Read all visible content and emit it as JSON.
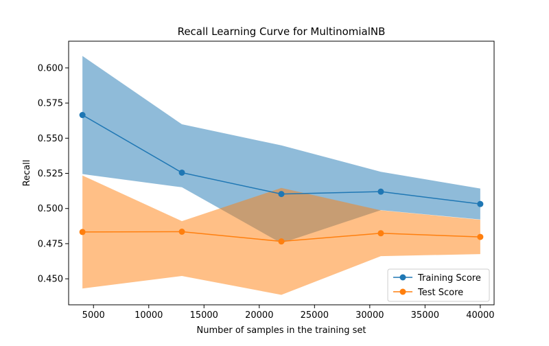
{
  "chart_data": {
    "type": "line",
    "title": "Recall Learning Curve for MultinomialNB",
    "xlabel": "Number of samples in the training set",
    "ylabel": "Recall",
    "x": [
      4000,
      13000,
      22000,
      31000,
      40000
    ],
    "xlim": [
      2750,
      41250
    ],
    "ylim": [
      0.4315,
      0.619
    ],
    "xticks": [
      5000,
      10000,
      15000,
      20000,
      25000,
      30000,
      35000,
      40000
    ],
    "xtick_labels": [
      "5000",
      "10000",
      "15000",
      "20000",
      "25000",
      "30000",
      "35000",
      "40000"
    ],
    "yticks": [
      0.45,
      0.475,
      0.5,
      0.525,
      0.55,
      0.575,
      0.6
    ],
    "ytick_labels": [
      "0.450",
      "0.475",
      "0.500",
      "0.525",
      "0.550",
      "0.575",
      "0.600"
    ],
    "grid": false,
    "legend_position": "lower right",
    "series": [
      {
        "name": "Training Score",
        "color": "#1f77b4",
        "values": [
          0.5665,
          0.5255,
          0.5103,
          0.512,
          0.5032
        ],
        "band_low": [
          0.5245,
          0.5151,
          0.4753,
          0.4988,
          0.4922
        ],
        "band_high": [
          0.6085,
          0.5599,
          0.5449,
          0.5261,
          0.5142
        ]
      },
      {
        "name": "Test Score",
        "color": "#ff7f0e",
        "values": [
          0.4833,
          0.4835,
          0.4766,
          0.4824,
          0.4798
        ],
        "band_low": [
          0.4431,
          0.452,
          0.4386,
          0.4661,
          0.4676
        ],
        "band_high": [
          0.5235,
          0.491,
          0.5146,
          0.4987,
          0.492
        ]
      }
    ]
  }
}
